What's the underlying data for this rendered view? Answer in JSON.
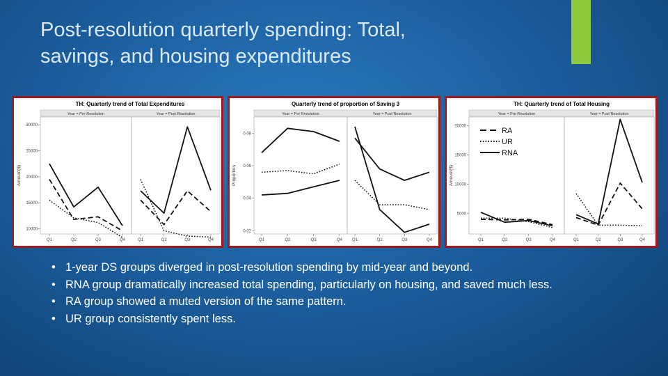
{
  "slide": {
    "title_line1": "Post-resolution quarterly spending:  Total,",
    "title_line2": "savings, and housing expenditures",
    "accent_color": "#8fca3c",
    "bullets": [
      "1-year DS groups diverged in post-resolution spending by mid-year and beyond.",
      "RNA group dramatically increased total spending, particularly on housing, and saved much less.",
      "RA group showed a muted version of the same pattern.",
      "UR group consistently spent less."
    ]
  },
  "chart_data": [
    {
      "type": "line",
      "title": "TH: Quarterly trend of Total Expenditures",
      "ylabel": "Amount($)",
      "xlabel": "",
      "facet_labels": [
        "Year = Pre Resolution",
        "Year = Post Resolution"
      ],
      "categories": [
        "Q1",
        "Q2",
        "Q3",
        "Q4"
      ],
      "ylim": [
        9000,
        31500
      ],
      "yticks": [
        10000,
        15000,
        20000,
        25000,
        30000
      ],
      "grid": false,
      "series": [
        {
          "name": "RA",
          "style": "dashed",
          "pre": [
            19500,
            11800,
            12300,
            9600
          ],
          "post": [
            15500,
            10800,
            17300,
            13300
          ]
        },
        {
          "name": "UR",
          "style": "dotted",
          "pre": [
            15500,
            12100,
            11200,
            8300
          ],
          "post": [
            19500,
            9600,
            8600,
            8400
          ]
        },
        {
          "name": "RNA",
          "style": "solid",
          "pre": [
            22500,
            14200,
            18000,
            10600
          ],
          "post": [
            17300,
            13000,
            29600,
            17400
          ]
        }
      ]
    },
    {
      "type": "line",
      "title": "Quarterly trend of proportion of Saving 3",
      "ylabel": "Proportion",
      "xlabel": "",
      "facet_labels": [
        "Year = Pre Resolution",
        "Year = Post Resolution"
      ],
      "categories": [
        "Q1",
        "Q2",
        "Q3",
        "Q4"
      ],
      "ylim": [
        0.018,
        0.09
      ],
      "yticks": [
        "0.02",
        "0.04",
        "0.06",
        "0.08"
      ],
      "grid": false,
      "series": [
        {
          "name": "RA",
          "style": "solid",
          "pre": [
            0.042,
            0.043,
            0.047,
            0.051
          ],
          "post": [
            0.077,
            0.058,
            0.051,
            0.056
          ]
        },
        {
          "name": "UR",
          "style": "dotted",
          "pre": [
            0.056,
            0.057,
            0.055,
            0.061
          ],
          "post": [
            0.051,
            0.036,
            0.036,
            0.033
          ]
        },
        {
          "name": "RNA",
          "style": "solid",
          "pre": [
            0.068,
            0.083,
            0.081,
            0.075
          ],
          "post": [
            0.084,
            0.033,
            0.019,
            0.024
          ]
        }
      ]
    },
    {
      "type": "line",
      "title": "TH: Quarterly trend of Total Housing",
      "ylabel": "Amount($)",
      "xlabel": "",
      "facet_labels": [
        "Year = Pre Resolution",
        "Year = Post Resolution"
      ],
      "categories": [
        "Q1",
        "Q2",
        "Q3",
        "Q4"
      ],
      "ylim": [
        1500,
        21500
      ],
      "yticks": [
        5000,
        10000,
        15000,
        20000
      ],
      "grid": false,
      "legend": {
        "placement": "top-left",
        "entries": [
          "RA",
          "UR",
          "RNA"
        ]
      },
      "series": [
        {
          "name": "RA",
          "style": "dashed",
          "pre": [
            4000,
            3900,
            4000,
            3100
          ],
          "post": [
            4300,
            3000,
            10200,
            5800
          ]
        },
        {
          "name": "UR",
          "style": "dotted",
          "pre": [
            4200,
            4200,
            3600,
            2600
          ],
          "post": [
            8400,
            3000,
            3000,
            2900
          ]
        },
        {
          "name": "RNA",
          "style": "solid",
          "pre": [
            5200,
            3500,
            3800,
            2900
          ],
          "post": [
            4800,
            3200,
            21100,
            10300
          ]
        }
      ]
    }
  ]
}
